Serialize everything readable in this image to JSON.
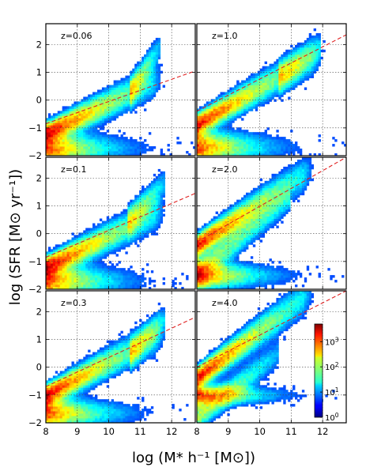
{
  "chart_data": {
    "type": "heatmap",
    "title": "",
    "xlabel": "log (M* h⁻¹ [M⊙])",
    "ylabel": "log (SFR [M⊙ yr⁻¹])",
    "xlim": [
      8.0,
      12.75
    ],
    "ylim": [
      -2.0,
      2.75
    ],
    "x_ticks": [
      8,
      9,
      10,
      11,
      12
    ],
    "y_ticks": [
      -2,
      -1,
      0,
      1,
      2
    ],
    "grid": true,
    "fit_line_color": "#e02020",
    "colormap": "jet",
    "colorbar": {
      "scale": "log",
      "ticks": [
        {
          "base": "10",
          "exp": "0",
          "value": 1
        },
        {
          "base": "10",
          "exp": "1",
          "value": 10
        },
        {
          "base": "10",
          "exp": "2",
          "value": 100
        },
        {
          "base": "10",
          "exp": "3",
          "value": 1000
        }
      ],
      "max": 5000,
      "placement": "inside panel z=4.0, lower-right"
    },
    "panels": [
      {
        "name": "z=0.06",
        "label": "z=0.06",
        "fit_line": [
          [
            8.0,
            -0.85
          ],
          [
            12.75,
            1.05
          ]
        ],
        "main_sequence": {
          "x0": 8.2,
          "y0": -1.1,
          "slope": 0.55,
          "x_end": 11.3
        },
        "passive": {
          "y": -1.75,
          "spread": 0.5
        },
        "tail": {
          "x0": 10.7,
          "x1": 11.6,
          "y0": 0.3,
          "y1": 1.9
        }
      },
      {
        "name": "z=1.0",
        "label": "z=1.0",
        "fit_line": [
          [
            8.0,
            -0.4
          ],
          [
            12.75,
            2.35
          ]
        ],
        "main_sequence": {
          "x0": 8.2,
          "y0": -0.75,
          "slope": 0.65,
          "x_end": 11.6
        },
        "passive": {
          "y": -1.7,
          "spread": 0.5
        },
        "tail": {
          "x0": 10.6,
          "x1": 11.9,
          "y0": 0.8,
          "y1": 1.9
        }
      },
      {
        "name": "z=0.1",
        "label": "z=0.1",
        "fit_line": [
          [
            8.0,
            -0.85
          ],
          [
            12.75,
            1.45
          ]
        ],
        "main_sequence": {
          "x0": 8.2,
          "y0": -1.1,
          "slope": 0.55,
          "x_end": 11.4
        },
        "passive": {
          "y": -1.7,
          "spread": 0.5
        },
        "tail": {
          "x0": 10.6,
          "x1": 11.8,
          "y0": 0.4,
          "y1": 1.9
        }
      },
      {
        "name": "z=2.0",
        "label": "z=2.0",
        "fit_line": [
          [
            8.0,
            -0.3
          ],
          [
            12.75,
            2.75
          ]
        ],
        "main_sequence": {
          "x0": 8.1,
          "y0": -0.35,
          "slope": 0.75,
          "x_end": 11.3
        },
        "passive": {
          "y": -1.5,
          "spread": 0.4
        },
        "tail": {
          "x0": 8.0,
          "x1": 11.0,
          "y0": -1.4,
          "y1": 1.3
        }
      },
      {
        "name": "z=0.3",
        "label": "z=0.3",
        "fit_line": [
          [
            8.0,
            -0.7
          ],
          [
            12.75,
            1.8
          ]
        ],
        "main_sequence": {
          "x0": 8.2,
          "y0": -0.9,
          "slope": 0.6,
          "x_end": 11.4
        },
        "passive": {
          "y": -1.65,
          "spread": 0.45
        },
        "tail": {
          "x0": 10.7,
          "x1": 11.8,
          "y0": 0.5,
          "y1": 1.8
        }
      },
      {
        "name": "z=4.0",
        "label": "z=4.0",
        "fit_line": [
          [
            8.0,
            0.0
          ],
          [
            12.75,
            2.75
          ]
        ],
        "main_sequence": {
          "x0": 8.0,
          "y0": -0.4,
          "slope": 0.85,
          "x_end": 11.3
        },
        "passive": {
          "y": -1.0,
          "spread": 0.3
        },
        "tail": {
          "x0": 8.0,
          "x1": 10.6,
          "y0": -1.8,
          "y1": 0.5
        }
      }
    ]
  }
}
